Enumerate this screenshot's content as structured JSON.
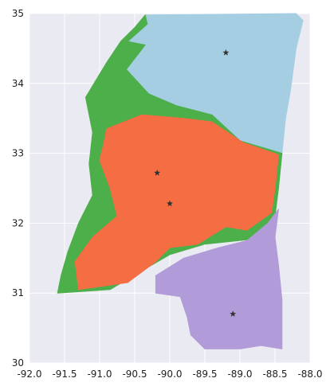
{
  "colors": {
    "plot_background": "#eaeaf2",
    "grid": "#ffffff",
    "region_north": "#a6cee3",
    "region_central": "#f46d43",
    "region_west": "#4daf4a",
    "region_south": "#b19cd9",
    "marker": "#333333"
  },
  "map": {
    "type": "choropleth",
    "xlim": [
      -92.0,
      -88.0
    ],
    "ylim": [
      30,
      35
    ],
    "x_ticks": [
      "-92.0",
      "-91.5",
      "-91.0",
      "-90.5",
      "-90.0",
      "-89.5",
      "-89.0",
      "-88.5",
      "-88.0"
    ],
    "y_ticks": [
      "30",
      "31",
      "32",
      "33",
      "34",
      "35"
    ],
    "x_tick_values": [
      -92.0,
      -91.5,
      -91.0,
      -90.5,
      -90.0,
      -89.5,
      -89.0,
      -88.5,
      -88.0
    ],
    "y_tick_values": [
      30,
      31,
      32,
      33,
      34,
      35
    ],
    "regions": [
      {
        "color_key": "region_north",
        "outline": [
          [
            -90.35,
            34.98
          ],
          [
            -88.2,
            35.0
          ],
          [
            -88.1,
            34.9
          ],
          [
            -88.2,
            34.5
          ],
          [
            -88.28,
            33.9
          ],
          [
            -88.35,
            33.5
          ],
          [
            -88.4,
            33.0
          ],
          [
            -89.0,
            33.18
          ],
          [
            -89.4,
            33.55
          ],
          [
            -89.9,
            33.68
          ],
          [
            -90.3,
            33.85
          ],
          [
            -90.62,
            34.2
          ],
          [
            -90.35,
            34.55
          ],
          [
            -90.6,
            34.6
          ],
          [
            -90.32,
            34.85
          ]
        ]
      },
      {
        "color_key": "region_west",
        "outline": [
          [
            -90.35,
            34.98
          ],
          [
            -90.32,
            34.85
          ],
          [
            -90.6,
            34.6
          ],
          [
            -90.35,
            34.55
          ],
          [
            -90.62,
            34.2
          ],
          [
            -90.3,
            33.85
          ],
          [
            -89.9,
            33.68
          ],
          [
            -89.4,
            33.55
          ],
          [
            -89.0,
            33.18
          ],
          [
            -88.4,
            33.0
          ],
          [
            -88.45,
            32.5
          ],
          [
            -88.5,
            32.1
          ],
          [
            -88.55,
            31.8
          ],
          [
            -89.5,
            31.7
          ],
          [
            -90.0,
            31.55
          ],
          [
            -90.6,
            31.2
          ],
          [
            -90.85,
            31.05
          ],
          [
            -91.6,
            31.0
          ],
          [
            -91.55,
            31.25
          ],
          [
            -91.45,
            31.6
          ],
          [
            -91.3,
            32.0
          ],
          [
            -91.1,
            32.4
          ],
          [
            -91.15,
            32.85
          ],
          [
            -91.1,
            33.3
          ],
          [
            -91.2,
            33.8
          ],
          [
            -90.9,
            34.3
          ],
          [
            -90.7,
            34.6
          ],
          [
            -90.5,
            34.8
          ]
        ]
      },
      {
        "color_key": "region_central",
        "outline": [
          [
            -90.9,
            33.35
          ],
          [
            -90.4,
            33.55
          ],
          [
            -89.8,
            33.5
          ],
          [
            -89.4,
            33.45
          ],
          [
            -88.95,
            33.15
          ],
          [
            -88.45,
            32.98
          ],
          [
            -88.5,
            32.5
          ],
          [
            -88.55,
            32.15
          ],
          [
            -88.9,
            31.9
          ],
          [
            -89.2,
            31.95
          ],
          [
            -89.6,
            31.7
          ],
          [
            -90.0,
            31.65
          ],
          [
            -90.2,
            31.45
          ],
          [
            -90.6,
            31.15
          ],
          [
            -91.3,
            31.05
          ],
          [
            -91.35,
            31.45
          ],
          [
            -91.1,
            31.8
          ],
          [
            -90.75,
            32.1
          ],
          [
            -90.85,
            32.5
          ],
          [
            -91.0,
            32.9
          ],
          [
            -90.95,
            33.1
          ]
        ]
      },
      {
        "color_key": "region_south",
        "outline": [
          [
            -88.45,
            32.2
          ],
          [
            -88.5,
            31.8
          ],
          [
            -88.45,
            31.4
          ],
          [
            -88.4,
            30.9
          ],
          [
            -88.4,
            30.2
          ],
          [
            -88.7,
            30.25
          ],
          [
            -89.0,
            30.2
          ],
          [
            -89.5,
            30.2
          ],
          [
            -89.7,
            30.4
          ],
          [
            -89.75,
            30.65
          ],
          [
            -89.85,
            30.95
          ],
          [
            -90.2,
            31.0
          ],
          [
            -90.2,
            31.25
          ],
          [
            -89.8,
            31.5
          ],
          [
            -89.3,
            31.65
          ],
          [
            -88.9,
            31.75
          ],
          [
            -88.6,
            32.0
          ]
        ]
      }
    ],
    "markers": [
      {
        "lon": -89.2,
        "lat": 34.44
      },
      {
        "lon": -90.18,
        "lat": 32.72
      },
      {
        "lon": -90.0,
        "lat": 32.28
      },
      {
        "lon": -89.1,
        "lat": 30.7
      }
    ]
  }
}
